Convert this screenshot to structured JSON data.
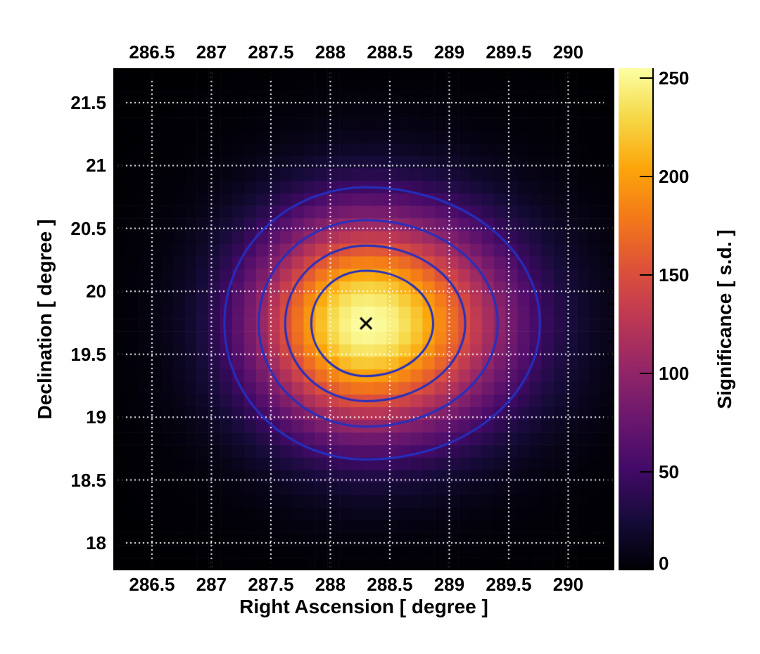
{
  "chart_data": {
    "type": "heatmap",
    "title": "",
    "xlabel": "Right Ascension [ degree ]",
    "ylabel": "Declination [ degree ]",
    "zlabel": "Significance [ s.d. ]",
    "x_range": [
      286.175,
      290.388
    ],
    "y_range": [
      17.782,
      21.774
    ],
    "z_range": [
      0,
      255
    ],
    "x_ticks": [
      286.5,
      287,
      287.5,
      288,
      288.5,
      289,
      289.5,
      290
    ],
    "x_tick_labels": [
      "286.5",
      "287",
      "287.5",
      "288",
      "288.5",
      "289",
      "289.5",
      "290"
    ],
    "y_ticks": [
      18,
      18.5,
      19,
      19.5,
      20,
      20.5,
      21,
      21.5
    ],
    "y_tick_labels": [
      "18",
      "18.5",
      "19",
      "19.5",
      "20",
      "20.5",
      "21",
      "21.5"
    ],
    "z_ticks": [
      0,
      50,
      100,
      150,
      200,
      250
    ],
    "z_tick_labels": [
      "0",
      "50",
      "100",
      "150",
      "200",
      "250"
    ],
    "minor_tick_step_deg": 0.1,
    "bin_size_deg": 0.1,
    "grid": {
      "show": true,
      "color": "#ffffff",
      "style": "dotted"
    },
    "source_model": {
      "type": "asymmetric-gaussian-peak",
      "peak_ra_deg": 288.3,
      "peak_dec_deg": 19.745,
      "peak_significance_sd": 255,
      "sigma_ra_low_deg": 0.66,
      "sigma_ra_high_deg": 0.81,
      "sigma_dec_deg": 0.6
    },
    "marker": {
      "ra_deg": 288.3,
      "dec_deg": 19.745,
      "symbol": "x",
      "color": "#000000"
    },
    "contours": {
      "levels_sd": [
        50,
        100,
        150,
        200
      ],
      "color": "#2330c0",
      "line_width": 3
    },
    "colormap": {
      "name": "inferno",
      "stops": [
        [
          0.0,
          "#000004"
        ],
        [
          0.1,
          "#160b39"
        ],
        [
          0.2,
          "#420a68"
        ],
        [
          0.3,
          "#6a176e"
        ],
        [
          0.4,
          "#932667"
        ],
        [
          0.5,
          "#bc3754"
        ],
        [
          0.6,
          "#dd513a"
        ],
        [
          0.7,
          "#f37819"
        ],
        [
          0.8,
          "#fca50a"
        ],
        [
          0.9,
          "#f6d746"
        ],
        [
          1.0,
          "#fcffa4"
        ]
      ]
    },
    "frame_color": "#000000",
    "tick_color": "#000000"
  }
}
